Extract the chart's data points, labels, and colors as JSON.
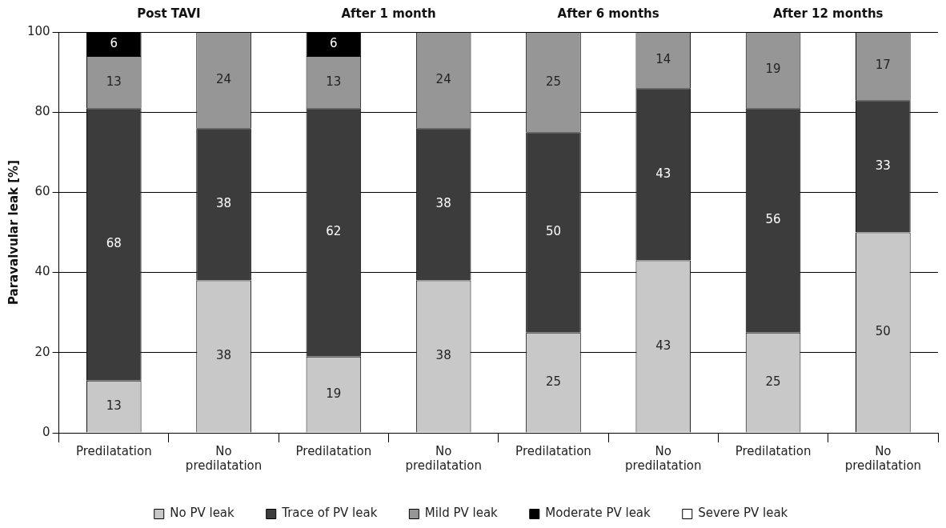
{
  "chart_data": {
    "type": "bar",
    "stacked": true,
    "ylabel": "Paravalvular leak [%]",
    "categories": [
      "Predilatation",
      "No predilatation",
      "Predilatation",
      "No predilatation",
      "Predilatation",
      "No predilatation",
      "Predilatation",
      "No predilatation"
    ],
    "annotations": [
      "Post TAVI",
      "After 1 month",
      "After 6 months",
      "After 12 months"
    ],
    "series": [
      {
        "name": "No PV leak",
        "color": "#c8c8c8",
        "values": [
          13,
          38,
          19,
          38,
          25,
          43,
          25,
          50
        ],
        "value_labels": [
          "13",
          "38",
          "19",
          "38",
          "25",
          "43",
          "25",
          "50"
        ]
      },
      {
        "name": "Trace of PV leak",
        "color": "#3c3c3c",
        "values": [
          68,
          38,
          62,
          38,
          50,
          43,
          56,
          33
        ],
        "value_labels": [
          "68",
          "38",
          "62",
          "38",
          "50",
          "43",
          "56",
          "33"
        ]
      },
      {
        "name": "Mild PV leak",
        "color": "#969696",
        "values": [
          13,
          24,
          13,
          24,
          25,
          14,
          19,
          17
        ],
        "value_labels": [
          "13",
          "24",
          "13",
          "24",
          "25",
          "14",
          "19",
          "17"
        ]
      },
      {
        "name": "Moderate PV leak",
        "color": "#000000",
        "values": [
          6,
          0,
          6,
          0,
          0,
          0,
          0,
          0
        ],
        "value_labels": [
          "6",
          null,
          "6",
          null,
          null,
          null,
          null,
          null
        ]
      },
      {
        "name": "Severe PV leak",
        "color": "#ffffff",
        "values": [
          0,
          0,
          0,
          0,
          0,
          0,
          0,
          0
        ],
        "value_labels": [
          null,
          null,
          null,
          null,
          null,
          null,
          null,
          null
        ]
      }
    ],
    "ylim": [
      0,
      100
    ],
    "yticks": [
      0,
      20,
      40,
      60,
      80,
      100
    ],
    "grid": "y",
    "legend": "bottom"
  }
}
